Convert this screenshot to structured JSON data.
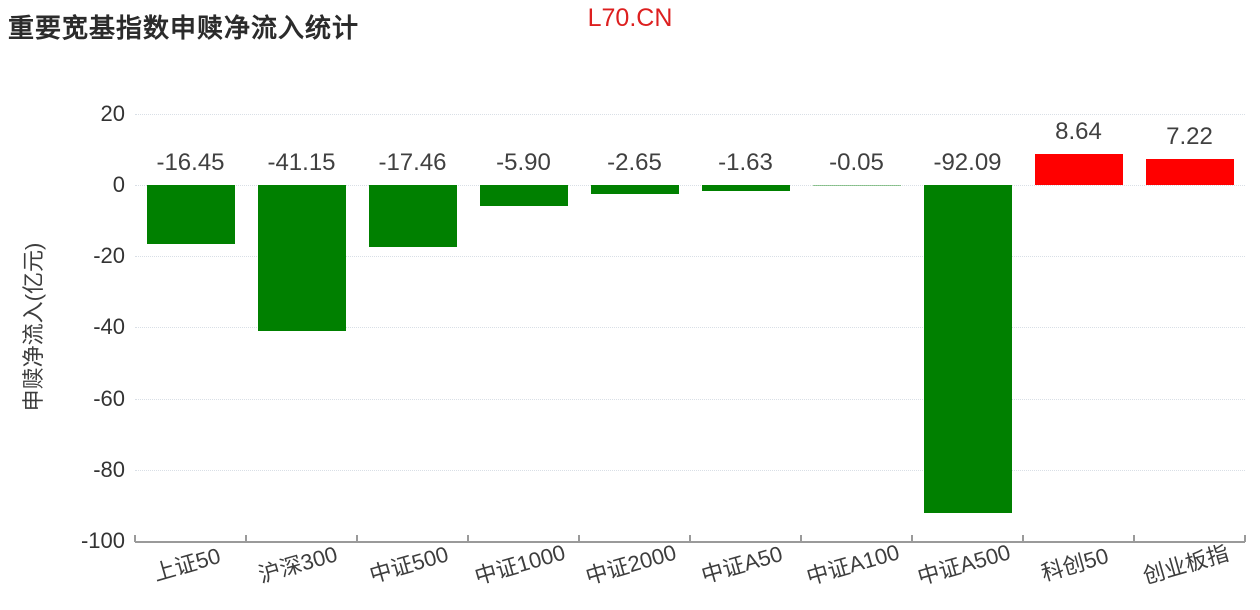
{
  "header": {
    "title": "重要宽基指数申赎净流入统计",
    "watermark": "L70.CN"
  },
  "colors": {
    "positive_bar": "#ff0000",
    "negative_bar": "#008000",
    "watermark_red": "#dd1f1f",
    "grid": "#d9dfe6",
    "axis": "#9a9a9a",
    "text": "#3d3d3d"
  },
  "chart_data": {
    "type": "bar",
    "title": "重要宽基指数申赎净流入统计",
    "xlabel": "",
    "ylabel": "申赎净流入(亿元)",
    "ylim": [
      -100,
      20
    ],
    "yticks": [
      20,
      0,
      -20,
      -40,
      -60,
      -80,
      -100
    ],
    "grid": "horizontal-dotted",
    "legend_position": "none",
    "categories": [
      "上证50",
      "沪深300",
      "中证500",
      "中证1000",
      "中证2000",
      "中证A50",
      "中证A100",
      "中证A500",
      "科创50",
      "创业板指"
    ],
    "values": [
      -16.45,
      -41.15,
      -17.46,
      -5.9,
      -2.65,
      -1.63,
      -0.05,
      -92.09,
      8.64,
      7.22
    ],
    "value_labels": [
      "-16.45",
      "-41.15",
      "-17.46",
      "-5.90",
      "-2.65",
      "-1.63",
      "-0.05",
      "-92.09",
      "8.64",
      "7.22"
    ],
    "positive_color": "#ff0000",
    "negative_color": "#008000"
  }
}
